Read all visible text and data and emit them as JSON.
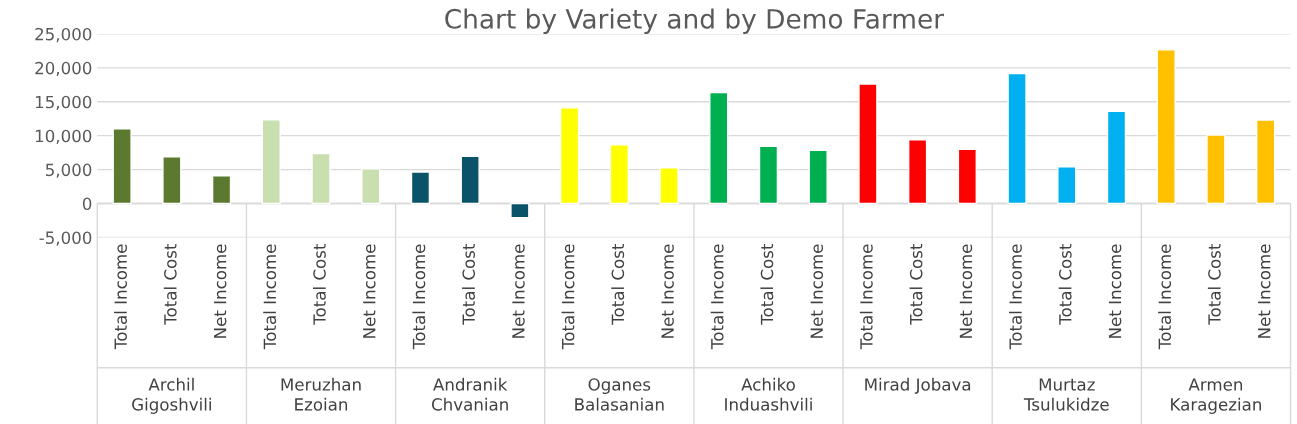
{
  "chart_data": {
    "type": "bar",
    "title": "Chart by Variety and by Demo Farmer",
    "categories": [
      "Total Income",
      "Total Cost",
      "Net Income",
      "Total Income",
      "Total Cost",
      "Net Income",
      "Total Income",
      "Total Cost",
      "Net Income",
      "Total Income",
      "Total Cost",
      "Net Income",
      "Total Income",
      "Total Cost",
      "Net Income",
      "Total Income",
      "Total Cost",
      "Net Income",
      "Total Income",
      "Total Cost",
      "Net Income",
      "Total Income",
      "Total Cost",
      "Net Income"
    ],
    "values": [
      11000,
      6900,
      4100,
      12350,
      7350,
      5100,
      4650,
      6950,
      -2100,
      14100,
      8650,
      5250,
      16350,
      8450,
      7850,
      17600,
      9400,
      8000,
      19150,
      5400,
      13600,
      22650,
      10100,
      12300
    ],
    "colors": [
      "#5b7a2f",
      "#5b7a2f",
      "#5b7a2f",
      "#c9dfb0",
      "#c9dfb0",
      "#c9dfb0",
      "#0b5369",
      "#0b5369",
      "#0b5369",
      "#ffff00",
      "#ffff00",
      "#ffff00",
      "#00b050",
      "#00b050",
      "#00b050",
      "#ff0000",
      "#ff0000",
      "#ff0000",
      "#00b0f0",
      "#00b0f0",
      "#00b0f0",
      "#ffc000",
      "#ffc000",
      "#ffc000"
    ],
    "annotations": [
      "Archil Gigoshvili",
      "Meruzhan Ezoian",
      "Andranik Chvanian",
      "Oganes Balasanian",
      "Achiko Induashvili",
      "Mirad Jobava",
      "Murtaz Tsulukidze",
      "Armen Karagezian"
    ],
    "ylim": [
      -5000,
      25000
    ],
    "yticks": [
      {
        "value": -5000,
        "label": "-5,000"
      },
      0,
      {
        "value": 5000,
        "label": "5,000"
      },
      {
        "value": 10000,
        "label": "10,000"
      },
      {
        "value": 15000,
        "label": "15,000"
      },
      {
        "value": 20000,
        "label": "20,000"
      },
      {
        "value": 25000,
        "label": "25,000"
      }
    ],
    "grid": "y"
  }
}
